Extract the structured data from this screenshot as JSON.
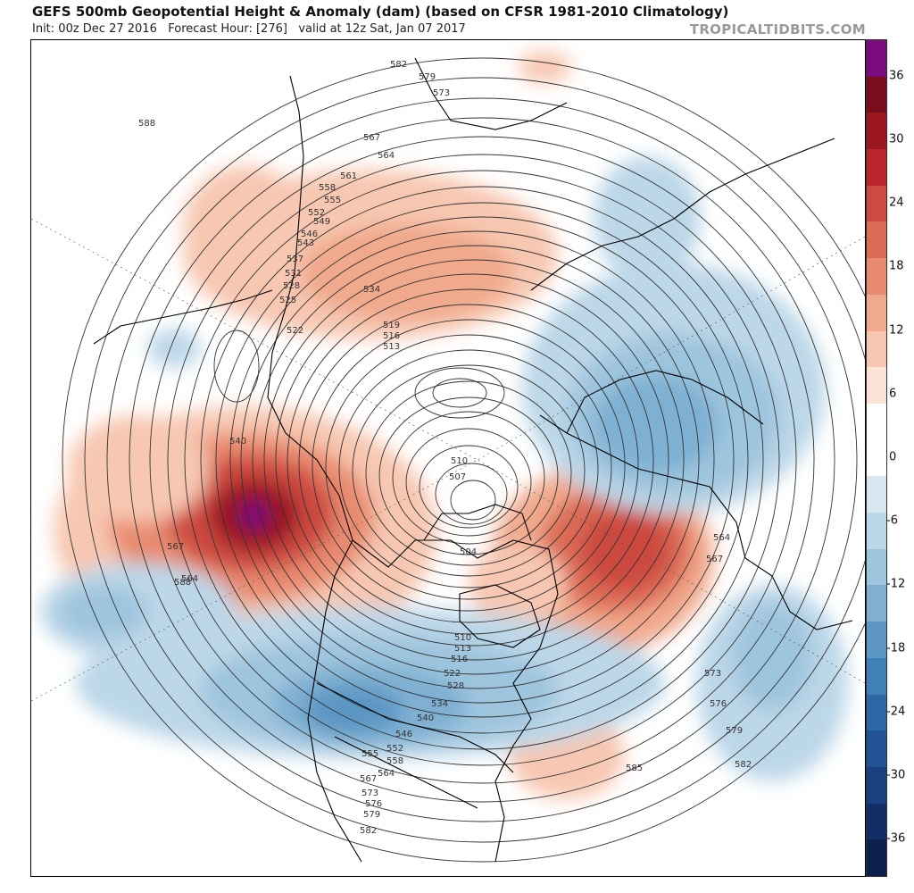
{
  "header": {
    "title": "GEFS 500mb Geopotential Height & Anomaly (dam) (based on CFSR 1981-2010 Climatology)",
    "subtitle": "Init: 00z Dec 27 2016   Forecast Hour: [276]   valid at 12z Sat, Jan 07 2017",
    "brand": "TROPICALTIDBITS.COM"
  },
  "colorbar": {
    "ticks": [
      "36",
      "30",
      "24",
      "18",
      "12",
      "6",
      "0",
      "-6",
      "-12",
      "-18",
      "-24",
      "-30",
      "-36"
    ],
    "colors": [
      "#7b0a7e",
      "#7a0e1c",
      "#9a1720",
      "#b8262c",
      "#cc4a40",
      "#dc6a55",
      "#e88b70",
      "#f0a98c",
      "#f7c7b1",
      "#fce3d7",
      "#ffffff",
      "#ffffff",
      "#d8e8f1",
      "#bcd7e8",
      "#9ec5de",
      "#7fb0d2",
      "#5c97c4",
      "#3f80b7",
      "#2c68a6",
      "#225394",
      "#1a4080",
      "#122e66",
      "#0c1f4d"
    ]
  },
  "contour_labels": [
    "588",
    "582",
    "579",
    "573",
    "567",
    "564",
    "561",
    "558",
    "555",
    "552",
    "549",
    "546",
    "543",
    "537",
    "534",
    "531",
    "528",
    "525",
    "522",
    "519",
    "516",
    "513",
    "510",
    "507",
    "504",
    "540",
    "585",
    "576"
  ]
}
